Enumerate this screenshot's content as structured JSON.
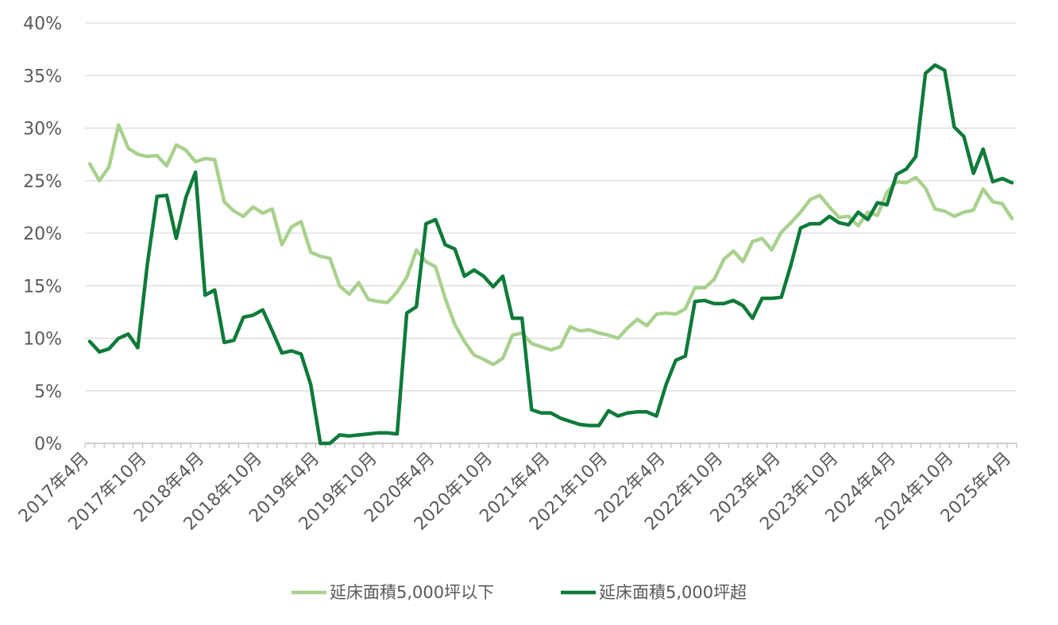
{
  "chart_data": {
    "type": "line",
    "title": "",
    "xlabel": "",
    "ylabel": "",
    "ylim": [
      0,
      40
    ],
    "y_ticks": [
      "0%",
      "5%",
      "10%",
      "15%",
      "20%",
      "25%",
      "30%",
      "35%",
      "40%"
    ],
    "x_tick_labels": [
      "2017年4月",
      "2017年10月",
      "2018年4月",
      "2018年10月",
      "2019年4月",
      "2019年10月",
      "2020年4月",
      "2020年10月",
      "2021年4月",
      "2021年10月",
      "2022年4月",
      "2022年10月",
      "2023年4月",
      "2023年10月",
      "2024年4月",
      "2024年10月",
      "2025年4月"
    ],
    "x_start": "2017-04",
    "grid": true,
    "legend_position": "bottom",
    "series": [
      {
        "name": "延床面積5,000坪以下",
        "color": "#a9d18e",
        "values": [
          26.6,
          25.0,
          26.3,
          30.3,
          28.1,
          27.5,
          27.3,
          27.4,
          26.4,
          28.4,
          27.9,
          26.8,
          27.1,
          27.0,
          23.0,
          22.1,
          21.6,
          22.5,
          21.9,
          22.3,
          18.9,
          20.6,
          21.1,
          18.2,
          17.8,
          17.6,
          15.0,
          14.2,
          15.3,
          13.7,
          13.5,
          13.4,
          14.4,
          15.8,
          18.4,
          17.3,
          16.8,
          13.8,
          11.3,
          9.7,
          8.4,
          8.0,
          7.5,
          8.1,
          10.3,
          10.5,
          9.5,
          9.2,
          8.9,
          9.2,
          11.1,
          10.7,
          10.8,
          10.5,
          10.3,
          10.0,
          11.0,
          11.8,
          11.2,
          12.3,
          12.4,
          12.3,
          12.8,
          14.8,
          14.8,
          15.6,
          17.5,
          18.3,
          17.3,
          19.2,
          19.5,
          18.4,
          20.1,
          21.0,
          22.0,
          23.2,
          23.6,
          22.5,
          21.5,
          21.6,
          20.7,
          22.0,
          21.7,
          23.9,
          24.9,
          24.8,
          25.3,
          24.3,
          22.3,
          22.1,
          21.6,
          22.0,
          22.2,
          24.2,
          23.0,
          22.8,
          21.4
        ]
      },
      {
        "name": "延床面積5,000坪超",
        "color": "#0e7a3a",
        "values": [
          9.7,
          8.7,
          9.0,
          10.0,
          10.4,
          9.1,
          17.1,
          23.5,
          23.6,
          19.5,
          23.4,
          25.8,
          14.1,
          14.6,
          9.6,
          9.8,
          12.0,
          12.2,
          12.7,
          10.7,
          8.6,
          8.8,
          8.5,
          5.6,
          0.0,
          0.0,
          0.8,
          0.7,
          0.8,
          0.9,
          1.0,
          1.0,
          0.9,
          12.4,
          13.0,
          20.9,
          21.3,
          18.9,
          18.5,
          15.9,
          16.5,
          15.9,
          14.9,
          15.9,
          11.9,
          11.9,
          3.2,
          2.9,
          2.9,
          2.4,
          2.1,
          1.8,
          1.7,
          1.7,
          3.1,
          2.6,
          2.9,
          3.0,
          3.0,
          2.6,
          5.6,
          7.9,
          8.3,
          13.5,
          13.6,
          13.3,
          13.3,
          13.6,
          13.1,
          11.9,
          13.8,
          13.8,
          13.9,
          17.0,
          20.5,
          20.9,
          20.9,
          21.6,
          21.0,
          20.8,
          22.0,
          21.3,
          22.9,
          22.7,
          25.6,
          26.1,
          27.3,
          35.2,
          36.0,
          35.5,
          30.1,
          29.2,
          25.7,
          28.0,
          24.9,
          25.2,
          24.8
        ]
      }
    ]
  }
}
